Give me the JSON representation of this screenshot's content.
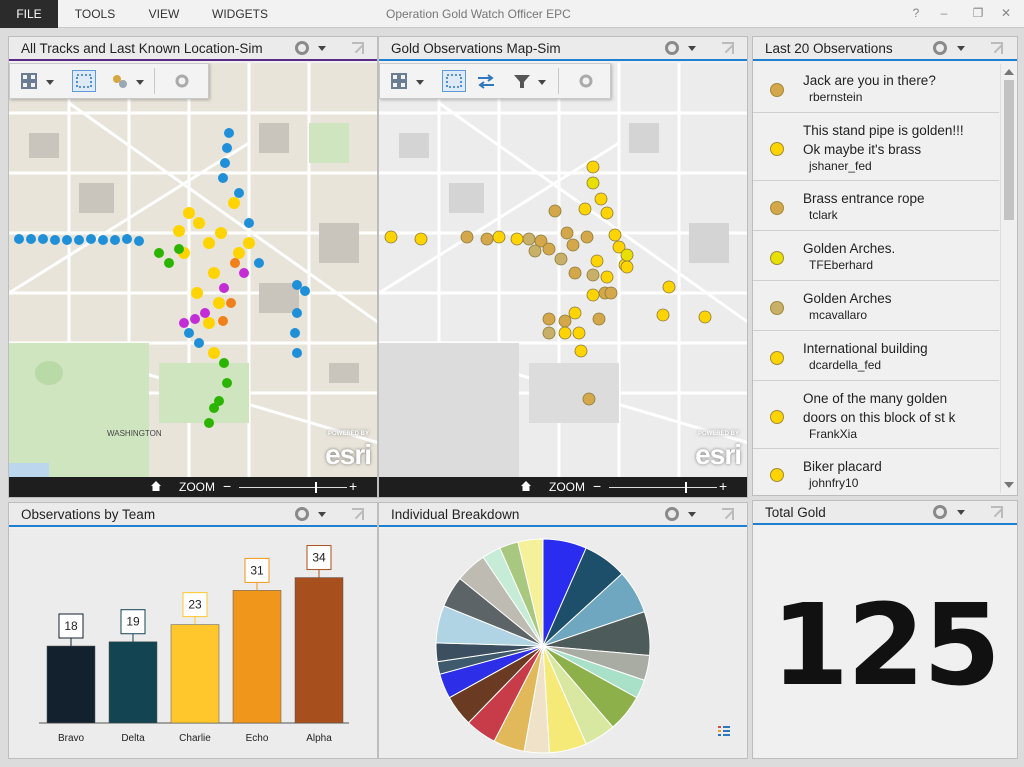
{
  "menubar": {
    "items": [
      "FILE",
      "TOOLS",
      "VIEW",
      "WIDGETS"
    ],
    "title": "Operation Gold Watch Officer EPC",
    "help": "?",
    "minimize": "–",
    "restore": "❐",
    "close": "✕"
  },
  "panels": {
    "tracks": {
      "title": "All Tracks and Last Known Location-Sim",
      "zoom_label": "ZOOM",
      "zoom_level": 0.72
    },
    "observations_map": {
      "title": "Gold Observations Map-Sim",
      "zoom_label": "ZOOM",
      "zoom_level": 0.72
    },
    "last20": {
      "title": "Last 20 Observations",
      "items": [
        {
          "text": "Jack are you in there?",
          "user": "rbernstein",
          "color": "#d4a84a"
        },
        {
          "text": "This stand pipe is golden!!! Ok maybe it's brass",
          "user": "jshaner_fed",
          "color": "#ffd400"
        },
        {
          "text": "Brass entrance rope",
          "user": "tclark",
          "color": "#d4a84a"
        },
        {
          "text": "Golden Arches.",
          "user": "TFEberhard",
          "color": "#e8e000"
        },
        {
          "text": "Golden Arches",
          "user": "mcavallaro",
          "color": "#c8b068"
        },
        {
          "text": "International building",
          "user": "dcardella_fed",
          "color": "#ffd400"
        },
        {
          "text": "One of the many golden doors on this block of st k",
          "user": "FrankXia",
          "color": "#ffd400"
        },
        {
          "text": "Biker placard",
          "user": "johnfry10",
          "color": "#ffd400"
        }
      ]
    },
    "by_team": {
      "title": "Observations by Team"
    },
    "individual": {
      "title": "Individual Breakdown"
    },
    "total": {
      "title": "Total Gold",
      "value": "125"
    }
  },
  "map_labels": {
    "washington": "WASHINGTON",
    "esri": "esri",
    "powered": "POWERED BY"
  },
  "chart_data": [
    {
      "type": "bar",
      "categories": [
        "Bravo",
        "Delta",
        "Charlie",
        "Echo",
        "Alpha"
      ],
      "values": [
        18,
        19,
        23,
        31,
        34
      ],
      "colors": [
        "#13212f",
        "#124451",
        "#ffc72c",
        "#f0961a",
        "#a7501e"
      ],
      "ylim": [
        0,
        36
      ]
    },
    {
      "type": "pie",
      "values": [
        7,
        7,
        7,
        7,
        4,
        3,
        6,
        5,
        6,
        4,
        5,
        5,
        5,
        4,
        2,
        3,
        6,
        5,
        5,
        3,
        3,
        4
      ],
      "colors": [
        "#2a2df0",
        "#1d4f6a",
        "#6fa7c0",
        "#4d5b5a",
        "#a9aca2",
        "#a8e0c8",
        "#8db04a",
        "#d8e8a0",
        "#f5ea78",
        "#efe2c8",
        "#e2b95a",
        "#c83c4a",
        "#6b3a22",
        "#2d2fe8",
        "#3e5a6c",
        "#3c4f60",
        "#b0d4e4",
        "#5c6468",
        "#bebcb2",
        "#c6ecd8",
        "#a8c880",
        "#f5f09a"
      ]
    }
  ],
  "colors": {
    "accent": "#1f7fd0",
    "purple_accent": "#5b2a86"
  }
}
